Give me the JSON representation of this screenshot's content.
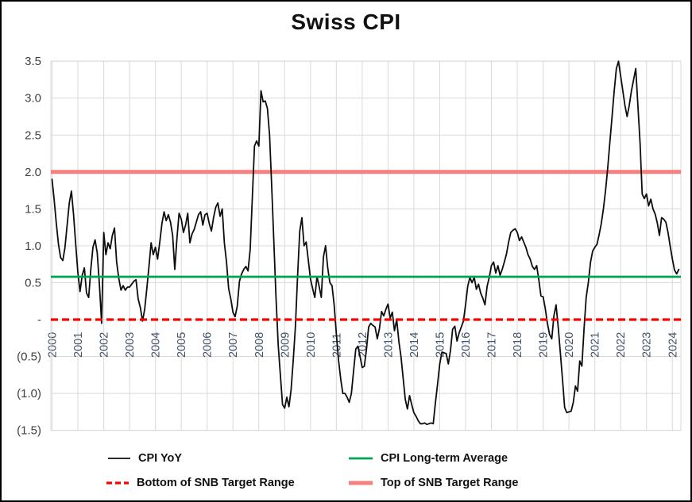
{
  "chart_data": {
    "type": "line",
    "title": "Swiss CPI",
    "x_axis": {
      "unit": "monthly",
      "start": "2000-01",
      "end": "2024-04",
      "year_labels": [
        2000,
        2001,
        2002,
        2003,
        2004,
        2005,
        2006,
        2007,
        2008,
        2009,
        2010,
        2011,
        2012,
        2013,
        2014,
        2015,
        2016,
        2017,
        2018,
        2019,
        2020,
        2021,
        2022,
        2023,
        2024
      ]
    },
    "ylim": [
      -1.5,
      3.5
    ],
    "y_ticks": [
      {
        "value": 3.5,
        "label": "3.5"
      },
      {
        "value": 3.0,
        "label": "3.0"
      },
      {
        "value": 2.5,
        "label": "2.5"
      },
      {
        "value": 2.0,
        "label": "2.0"
      },
      {
        "value": 1.5,
        "label": "1.5"
      },
      {
        "value": 1.0,
        "label": "1.0"
      },
      {
        "value": 0.5,
        "label": "0.5"
      },
      {
        "value": 0.0,
        "label": "-"
      },
      {
        "value": -0.5,
        "label": "(0.5)"
      },
      {
        "value": -1.0,
        "label": "(1.0)"
      },
      {
        "value": -1.5,
        "label": "(1.5)"
      }
    ],
    "grid": true,
    "legend_position": "bottom",
    "draw_order": [
      3,
      0,
      1,
      2
    ],
    "series": [
      {
        "name": "CPI YoY",
        "kind": "monthly-line",
        "color": "#0d0d0d",
        "width": 1.8,
        "dash": "",
        "values": [
          1.9,
          1.62,
          1.3,
          1.02,
          0.84,
          0.8,
          0.98,
          1.28,
          1.58,
          1.74,
          1.42,
          1.02,
          0.64,
          0.38,
          0.6,
          0.7,
          0.36,
          0.3,
          0.68,
          0.98,
          1.08,
          0.9,
          0.48,
          -0.05,
          1.18,
          0.88,
          1.04,
          0.96,
          1.14,
          1.24,
          0.78,
          0.56,
          0.4,
          0.46,
          0.4,
          0.44,
          0.44,
          0.48,
          0.52,
          0.54,
          0.28,
          0.16,
          -0.02,
          0.14,
          0.42,
          0.72,
          1.04,
          0.88,
          0.98,
          0.82,
          1.04,
          1.3,
          1.46,
          1.34,
          1.42,
          1.32,
          1.14,
          0.68,
          1.1,
          1.44,
          1.36,
          1.18,
          1.28,
          1.44,
          1.04,
          1.16,
          1.22,
          1.32,
          1.42,
          1.46,
          1.28,
          1.42,
          1.44,
          1.3,
          1.2,
          1.38,
          1.52,
          1.58,
          1.4,
          1.5,
          1.04,
          0.78,
          0.42,
          0.28,
          0.1,
          0.04,
          0.18,
          0.52,
          0.62,
          0.68,
          0.72,
          0.66,
          0.95,
          1.65,
          2.35,
          2.42,
          2.35,
          3.1,
          2.95,
          2.96,
          2.86,
          2.5,
          1.8,
          1.05,
          0.3,
          -0.35,
          -0.75,
          -1.15,
          -1.2,
          -1.05,
          -1.18,
          -0.95,
          -0.55,
          -0.1,
          0.6,
          1.2,
          1.38,
          1.0,
          1.05,
          0.8,
          0.55,
          0.42,
          0.3,
          0.58,
          0.45,
          0.3,
          0.85,
          1.0,
          0.7,
          0.5,
          0.46,
          0.2,
          -0.2,
          -0.55,
          -0.8,
          -1.0,
          -1.0,
          -1.05,
          -1.12,
          -1.0,
          -0.7,
          -0.4,
          -0.36,
          -0.5,
          -0.65,
          -0.63,
          -0.4,
          -0.1,
          -0.05,
          -0.08,
          -0.1,
          -0.26,
          -0.12,
          0.11,
          0.05,
          0.14,
          0.21,
          0.02,
          0.1,
          -0.15,
          0.0,
          -0.29,
          -0.5,
          -0.79,
          -1.08,
          -1.21,
          -1.03,
          -1.15,
          -1.26,
          -1.31,
          -1.37,
          -1.41,
          -1.41,
          -1.4,
          -1.42,
          -1.41,
          -1.4,
          -1.41,
          -1.12,
          -0.87,
          -0.6,
          -0.44,
          -0.45,
          -0.46,
          -0.6,
          -0.42,
          -0.13,
          -0.09,
          -0.29,
          -0.18,
          -0.1,
          -0.02,
          0.2,
          0.45,
          0.57,
          0.5,
          0.57,
          0.41,
          0.48,
          0.36,
          0.29,
          0.2,
          0.45,
          0.57,
          0.73,
          0.78,
          0.63,
          0.73,
          0.6,
          0.68,
          0.78,
          0.89,
          1.05,
          1.18,
          1.21,
          1.23,
          1.18,
          1.07,
          1.12,
          1.05,
          0.98,
          0.88,
          0.82,
          0.72,
          0.68,
          0.73,
          0.54,
          0.32,
          0.31,
          0.15,
          -0.05,
          -0.2,
          -0.26,
          0.05,
          0.2,
          -0.1,
          -0.45,
          -0.81,
          -1.19,
          -1.26,
          -1.25,
          -1.24,
          -1.12,
          -0.9,
          -0.97,
          -0.56,
          -0.63,
          -0.13,
          0.3,
          0.5,
          0.78,
          0.93,
          0.98,
          1.02,
          1.15,
          1.3,
          1.5,
          1.75,
          2.05,
          2.4,
          2.75,
          3.1,
          3.4,
          3.5,
          3.3,
          3.1,
          2.9,
          2.75,
          2.9,
          3.1,
          3.25,
          3.4,
          2.9,
          2.4,
          1.7,
          1.64,
          1.7,
          1.54,
          1.63,
          1.5,
          1.43,
          1.31,
          1.14,
          1.38,
          1.36,
          1.32,
          1.18,
          0.99,
          0.82,
          0.67,
          0.62,
          0.68
        ]
      },
      {
        "name": "CPI Long-term Average",
        "kind": "hline",
        "color": "#00a550",
        "width": 2.8,
        "dash": "",
        "value": 0.58
      },
      {
        "name": "Bottom of SNB Target Range",
        "kind": "hline",
        "color": "#fe0000",
        "width": 3.2,
        "dash": "9 5",
        "value": 0.0
      },
      {
        "name": "Top of SNB Target Range",
        "kind": "hline",
        "color": "#f87f80",
        "width": 5,
        "dash": "",
        "value": 2.0
      }
    ],
    "colors": {
      "grid": "#d9d9d9",
      "plot_border": "#d9d9d9",
      "y_tick_text": "#404040",
      "x_tick_text": "#44546a",
      "title_text": "#111111",
      "legend_text": "#111111",
      "background": "#ffffff",
      "frame_border": "#000000"
    }
  }
}
